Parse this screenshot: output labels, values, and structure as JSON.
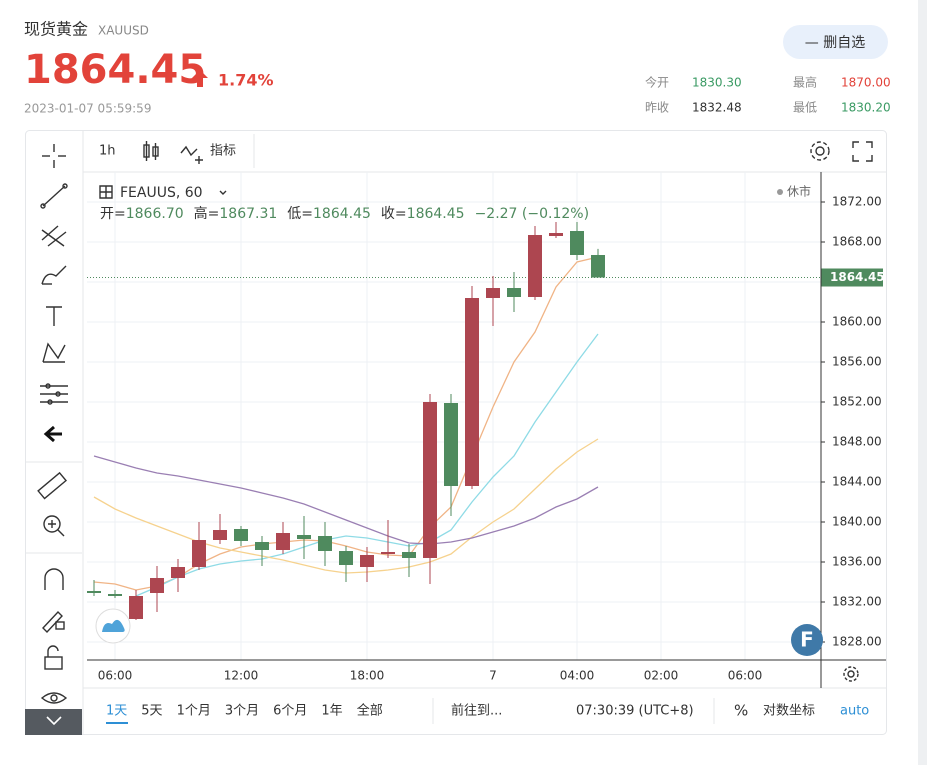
{
  "header": {
    "title": "现货黄金",
    "symbol": "XAUUSD",
    "price": "1864.45",
    "change": "1.74%",
    "timestamp": "2023-01-07 05:59:59",
    "watch_button": "— 删自选",
    "stats": [
      {
        "label": "今开",
        "value": "1830.30"
      },
      {
        "label": "最高",
        "value": "1870.00"
      },
      {
        "label": "昨收",
        "value": "1832.48"
      },
      {
        "label": "最低",
        "value": "1830.20"
      }
    ]
  },
  "toolbar": {
    "interval": "1h",
    "indicators": "指标"
  },
  "chart_data": {
    "type": "candlestick",
    "legend_symbol": "FEAUUS, 60",
    "status": "休市",
    "ohlc_legend": [
      {
        "label": "开=",
        "value": "1866.70"
      },
      {
        "label": "高=",
        "value": "1867.31"
      },
      {
        "label": "低=",
        "value": "1864.45"
      },
      {
        "label": "收=",
        "value": "1864.45"
      }
    ],
    "change_text": "−2.27 (−0.12%)",
    "categories": [
      null,
      "06:00",
      null,
      null,
      null,
      null,
      null,
      "12:00",
      null,
      null,
      null,
      null,
      null,
      "18:00",
      null,
      null,
      null,
      null,
      null,
      "7",
      null,
      null,
      null,
      "04:00",
      null,
      null,
      null,
      "02:00",
      null,
      null,
      null,
      "06:00"
    ],
    "open": [
      1833.1,
      1832.8,
      1830.3,
      1832.9,
      1834.4,
      1835.5,
      1838.2,
      1839.3,
      1838.0,
      1837.2,
      1838.7,
      1838.6,
      1837.1,
      1835.5,
      1836.8,
      1837.0,
      1836.4,
      1851.9,
      1843.6,
      1862.4,
      1863.4,
      1862.5,
      1868.6,
      1869.1,
      1866.7,
      null,
      null,
      null,
      null,
      null,
      null,
      null
    ],
    "high": [
      1834.2,
      1833.2,
      1833.2,
      1835.6,
      1836.3,
      1840.0,
      1840.8,
      1839.6,
      1838.6,
      1840.0,
      1840.6,
      1840.0,
      1837.6,
      1837.5,
      1840.2,
      1837.8,
      1852.8,
      1852.8,
      1863.6,
      1864.6,
      1865.0,
      1869.6,
      1870.0,
      1870.0,
      1867.31,
      null,
      null,
      null,
      null,
      null,
      null,
      null
    ],
    "low": [
      1832.6,
      1832.4,
      1830.2,
      1831.0,
      1833.0,
      1835.2,
      1837.8,
      1837.6,
      1835.6,
      1836.8,
      1836.3,
      1835.6,
      1834.0,
      1834.0,
      1836.4,
      1834.5,
      1833.8,
      1840.6,
      1843.3,
      1859.6,
      1861.0,
      1862.2,
      1868.4,
      1866.2,
      1864.45,
      null,
      null,
      null,
      null,
      null,
      null,
      null
    ],
    "close": [
      1832.9,
      1832.6,
      1832.6,
      1834.4,
      1835.5,
      1838.2,
      1839.2,
      1838.1,
      1837.2,
      1838.9,
      1838.3,
      1837.1,
      1835.7,
      1836.7,
      1837.0,
      1836.4,
      1852.0,
      1843.6,
      1862.4,
      1863.4,
      1862.5,
      1868.7,
      1868.9,
      1866.7,
      1864.45,
      null,
      null,
      null,
      null,
      null,
      null,
      null
    ],
    "up_color": "#ad4650",
    "down_color": "#4f8a5e",
    "overlays": [
      {
        "color": "#f0b486",
        "values": [
          1834.0,
          1833.8,
          1833.2,
          1833.6,
          1834.5,
          1835.8,
          1836.8,
          1837.5,
          1837.8,
          1838.0,
          1838.2,
          1838.1,
          1837.6,
          1837.0,
          1836.7,
          1836.6,
          1839.5,
          1841.5,
          1846.5,
          1851.5,
          1856.0,
          1859.0,
          1863.5,
          1866.0,
          1866.5,
          null,
          null,
          null,
          null,
          null,
          null,
          null
        ]
      },
      {
        "color": "#8fdbe6",
        "values": [
          null,
          null,
          1832.6,
          1833.5,
          1834.5,
          1835.3,
          1835.8,
          1836.1,
          1836.3,
          1836.8,
          1837.5,
          1838.2,
          1838.6,
          1838.4,
          1838.0,
          1837.6,
          1838.0,
          1839.2,
          1842.0,
          1844.5,
          1846.6,
          1850.0,
          1853.0,
          1856.0,
          1858.8,
          null,
          null,
          null,
          null,
          null,
          null,
          null
        ]
      },
      {
        "color": "#f6d28e",
        "values": [
          1842.5,
          1841.3,
          1840.4,
          1839.6,
          1838.8,
          1838.0,
          1837.4,
          1837.0,
          1836.6,
          1836.2,
          1835.7,
          1835.2,
          1834.9,
          1835.0,
          1835.2,
          1835.5,
          1836.0,
          1836.8,
          1838.5,
          1840.0,
          1841.3,
          1843.3,
          1845.3,
          1847.0,
          1848.3,
          null,
          null,
          null,
          null,
          null,
          null,
          null
        ]
      },
      {
        "color": "#9a7fb3",
        "values": [
          1846.6,
          1846.0,
          1845.4,
          1844.9,
          1844.6,
          1844.2,
          1843.8,
          1843.4,
          1842.9,
          1842.4,
          1841.8,
          1841.0,
          1840.2,
          1839.4,
          1838.6,
          1837.9,
          1837.8,
          1838.0,
          1838.4,
          1839.0,
          1839.6,
          1840.4,
          1841.5,
          1842.3,
          1843.5,
          null,
          null,
          null,
          null,
          null,
          null,
          null
        ]
      }
    ],
    "last_price": {
      "value": 1864.45,
      "label": "1864.45"
    },
    "ylim": [
      1826.2,
      1875
    ],
    "yticks": [
      {
        "value": 1828,
        "label": "1828.00"
      },
      {
        "value": 1832,
        "label": "1832.00"
      },
      {
        "value": 1836,
        "label": "1836.00"
      },
      {
        "value": 1840,
        "label": "1840.00"
      },
      {
        "value": 1844,
        "label": "1844.00"
      },
      {
        "value": 1848,
        "label": "1848.00"
      },
      {
        "value": 1852,
        "label": "1852.00"
      },
      {
        "value": 1856,
        "label": "1856.00"
      },
      {
        "value": 1860,
        "label": "1860.00"
      },
      {
        "value": 1864,
        "label": "1864.00"
      },
      {
        "value": 1868,
        "label": "1868.00"
      },
      {
        "value": 1872,
        "label": "1872.00"
      }
    ],
    "grid": true
  },
  "bottom_bar": {
    "ranges": [
      "1天",
      "5天",
      "1个月",
      "3个月",
      "6个月",
      "1年",
      "全部"
    ],
    "goto": "前往到...",
    "time": "07:30:39 (UTC+8)",
    "percent": "%",
    "log": "对数坐标",
    "auto": "auto"
  },
  "logo": "F"
}
